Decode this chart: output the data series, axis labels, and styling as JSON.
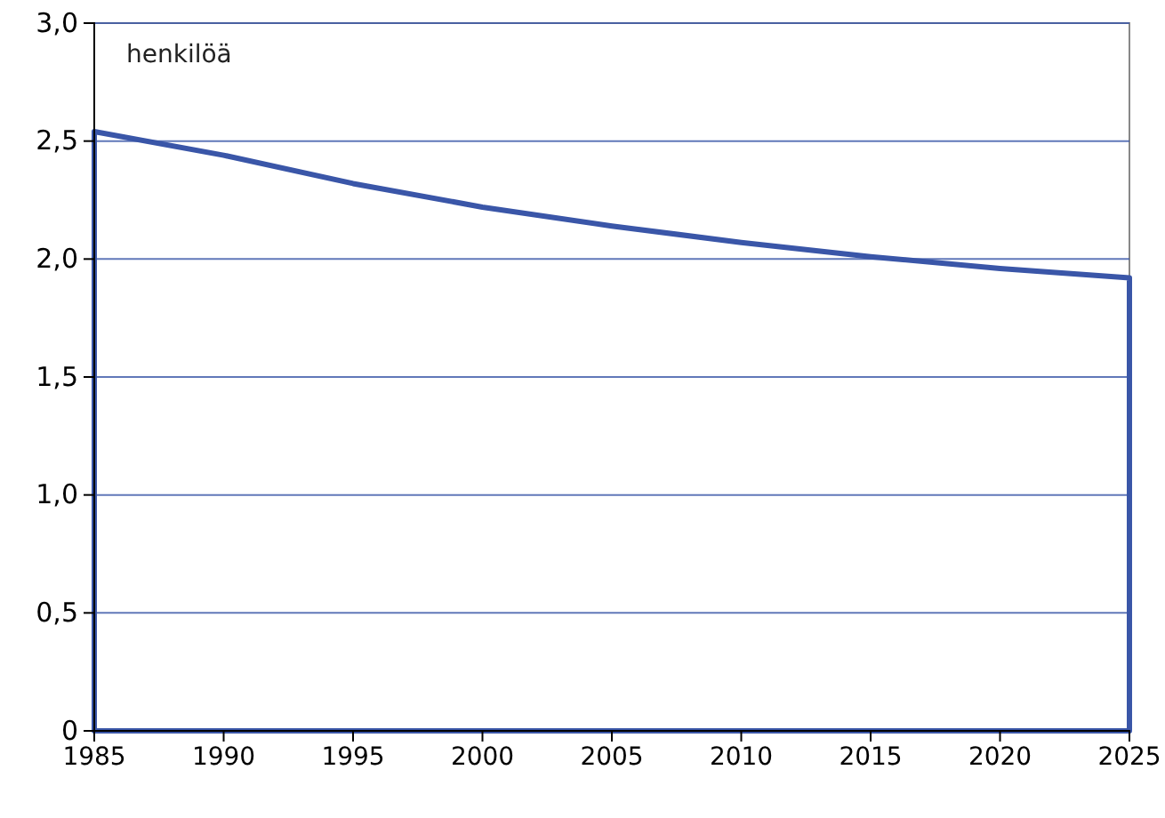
{
  "chart_data": {
    "type": "area",
    "ylabel": "henkilöä",
    "x": [
      1985,
      1990,
      1995,
      2000,
      2005,
      2010,
      2015,
      2020,
      2025
    ],
    "series": [
      {
        "color": "#3a56a8",
        "values": [
          2.54,
          2.44,
          2.32,
          2.22,
          2.14,
          2.07,
          2.01,
          1.96,
          1.92
        ]
      }
    ],
    "xlim": [
      1985,
      2025
    ],
    "xticks": [
      1985,
      1990,
      1995,
      2000,
      2005,
      2010,
      2015,
      2020,
      2025
    ],
    "ylim": [
      0,
      3
    ],
    "yticks": [
      {
        "value": 0,
        "label": "0"
      },
      {
        "value": 0.5,
        "label": "0,5"
      },
      {
        "value": 1,
        "label": "1,0"
      },
      {
        "value": 1.5,
        "label": "1,5"
      },
      {
        "value": 2,
        "label": "2,0"
      },
      {
        "value": 2.5,
        "label": "2,5"
      },
      {
        "value": 3,
        "label": "3,0"
      }
    ],
    "grid": "y"
  }
}
